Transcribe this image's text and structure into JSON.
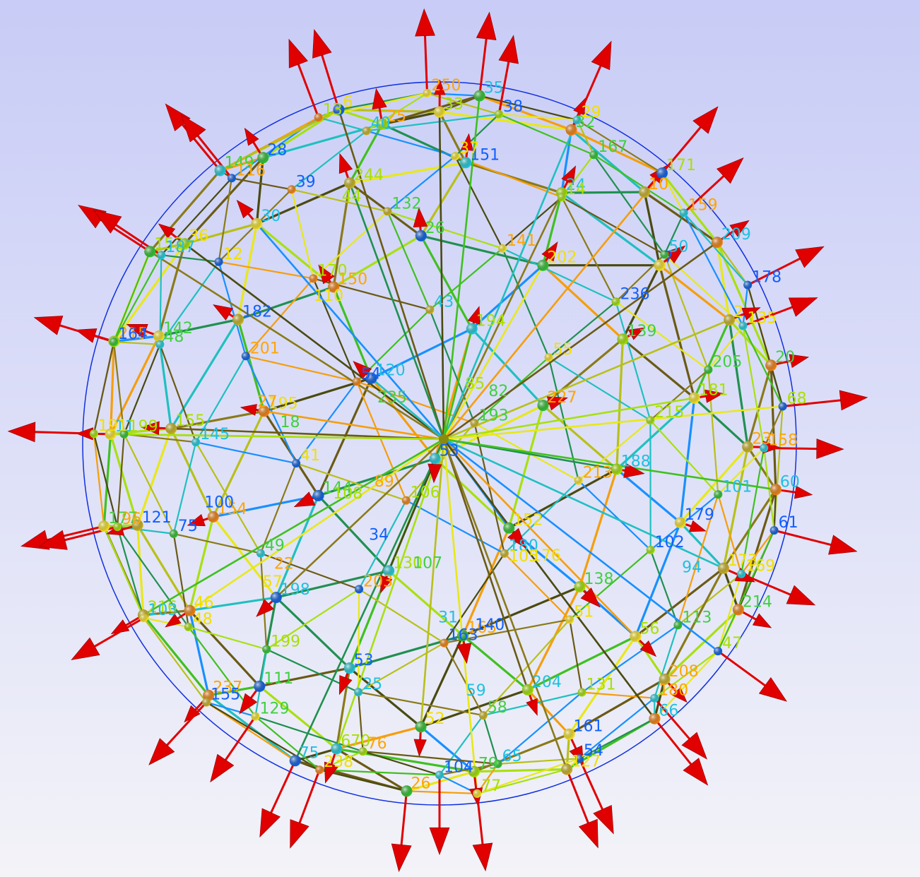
{
  "colors": {
    "arrow": "#e00000",
    "outline": "#1030e0",
    "mesh": [
      "#4a4a10",
      "#6a5a14",
      "#8a7a18",
      "#b8c018",
      "#e8e81a",
      "#a8e010",
      "#40c020",
      "#209050",
      "#20c0c0",
      "#1890ff",
      "#f59e0b"
    ],
    "node": [
      "#f4e020",
      "#a0e000",
      "#30c030",
      "#20c8d8",
      "#1060e0",
      "#f08010",
      "#c8b020"
    ],
    "label": [
      "#a8e000",
      "#ffa500",
      "#20c0e0",
      "#1060ff",
      "#f0e000",
      "#40d040"
    ]
  },
  "labels": {
    "nodes": [
      "33",
      "25",
      "35",
      "151",
      "6",
      "32",
      "244",
      "250",
      "24",
      "28",
      "29",
      "26",
      "13",
      "10",
      "30",
      "38",
      "202",
      "149",
      "171",
      "150",
      "40",
      "7",
      "36",
      "167",
      "194",
      "116",
      "209",
      "182",
      "37",
      "139",
      "153",
      "159",
      "120",
      "39",
      "2",
      "142",
      "14",
      "227",
      "187",
      "178",
      "195",
      "132",
      "181",
      "215",
      "50",
      "53",
      "12",
      "20",
      "155",
      "141",
      "188",
      "164",
      "135",
      "144",
      "170",
      "23",
      "11",
      "236",
      "152",
      "48",
      "68",
      "154",
      "43",
      "179",
      "191",
      "205",
      "130",
      "201",
      "60",
      "121",
      "55",
      "138",
      "199",
      "158",
      "198",
      "54",
      "173",
      "177",
      "215",
      "165",
      "145",
      "61",
      "46",
      "193",
      "56",
      "96",
      "101",
      "53",
      "41",
      "214",
      "216",
      "213",
      "204",
      "75",
      "169",
      "111",
      "106",
      "208",
      "103",
      "102",
      "52",
      "49",
      "47",
      "237",
      "180",
      "161",
      "48",
      "113",
      "670",
      "203",
      "66",
      "155",
      "51",
      "79",
      "199",
      "180",
      "75",
      "163",
      "127",
      "129",
      "131",
      "26",
      "25",
      "54",
      "238",
      "58",
      "77",
      "76",
      "65",
      "104",
      "105",
      "107",
      "108",
      "27",
      "59",
      "100",
      "110",
      "18",
      "44",
      "22",
      "31",
      "34",
      "57",
      "82",
      "85",
      "89",
      "94",
      "140",
      "176",
      "235"
    ]
  }
}
